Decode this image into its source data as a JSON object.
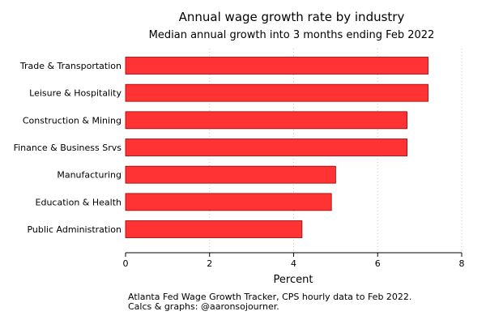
{
  "chart_data": {
    "type": "bar",
    "orientation": "horizontal",
    "title": "Annual wage growth rate by industry",
    "subtitle": "Median annual growth into 3 months ending Feb 2022",
    "categories": [
      "Trade & Transportation",
      "Leisure & Hospitality",
      "Construction & Mining",
      "Finance & Business Srvs",
      "Manufacturing",
      "Education & Health",
      "Public Administration"
    ],
    "values": [
      7.2,
      7.2,
      6.7,
      6.7,
      5.0,
      4.9,
      4.2
    ],
    "xlabel": "Percent",
    "ylabel": "",
    "xlim": [
      0,
      8
    ],
    "xticks": [
      0,
      2,
      4,
      6,
      8
    ],
    "grid": "vertical-dotted",
    "bar_color": "#ff3333",
    "bar_edge_color": "#990000",
    "notes": [
      "Atlanta Fed Wage Growth Tracker, CPS hourly data to Feb 2022.",
      "Calcs & graphs: @aaronsojourner."
    ]
  }
}
